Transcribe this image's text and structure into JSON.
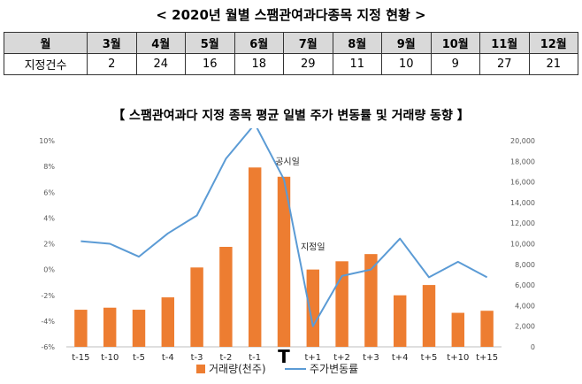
{
  "page": {
    "title": "< 2020년 월별 스팸관여과다종목 지정 현황 >",
    "chart_title": "【 스팸관여과다 지정 종목 평균 일별 주가 변동률 및 거래량 동향 】"
  },
  "table": {
    "header_label": "월",
    "row_label": "지정건수",
    "months": [
      "3월",
      "4월",
      "5월",
      "6월",
      "7월",
      "8월",
      "9월",
      "10월",
      "11월",
      "12월"
    ],
    "counts": [
      "2",
      "24",
      "16",
      "18",
      "29",
      "11",
      "10",
      "9",
      "27",
      "21"
    ]
  },
  "colors": {
    "bar": "#ed7d31",
    "line": "#5b9bd5",
    "grid": "#d9d9d9"
  },
  "chart_data": {
    "type": "bar+line",
    "categories": [
      "t-15",
      "t-10",
      "t-5",
      "t-4",
      "t-3",
      "t-2",
      "t-1",
      "T",
      "t+1",
      "t+2",
      "t+3",
      "t+4",
      "t+5",
      "t+10",
      "t+15"
    ],
    "series": [
      {
        "name": "거래량(천주)",
        "type": "bar",
        "axis": "right",
        "values": [
          3600,
          3800,
          3600,
          4800,
          7700,
          9700,
          17400,
          16500,
          7500,
          8300,
          9000,
          5000,
          6000,
          3300,
          3500
        ]
      },
      {
        "name": "주가변동률",
        "type": "line",
        "axis": "left",
        "values": [
          2.2,
          2.0,
          1.0,
          2.8,
          4.2,
          8.6,
          11.3,
          7.0,
          -4.4,
          -0.5,
          0.0,
          2.4,
          -0.6,
          0.6,
          -0.6
        ]
      }
    ],
    "left_axis": {
      "ticks": [
        "10%",
        "8%",
        "6%",
        "4%",
        "2%",
        "0%",
        "-2%",
        "-4%",
        "-6%"
      ],
      "ylim": [
        -6,
        10
      ]
    },
    "right_axis": {
      "ticks": [
        "20,000",
        "18,000",
        "16,000",
        "14,000",
        "12,000",
        "10,000",
        "8,000",
        "6,000",
        "4,000",
        "2,000",
        "0"
      ],
      "ylim": [
        0,
        20000
      ]
    },
    "annotations": [
      {
        "label": "공시일",
        "at": "T"
      },
      {
        "label": "지정일",
        "at": "t+1"
      }
    ],
    "legend": {
      "position": "bottom",
      "entries": [
        {
          "label": "거래량(천주)",
          "series": 0
        },
        {
          "label": "주가변동률",
          "series": 1
        }
      ]
    },
    "grid": false
  }
}
